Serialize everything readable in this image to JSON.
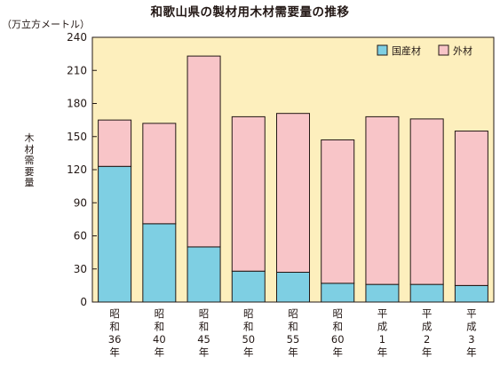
{
  "chart_data": {
    "type": "bar",
    "stacked": true,
    "title": "和歌山県の製材用木材需要量の推移",
    "unit_label": "（万立方メートル）",
    "ylabel": "木材需要量",
    "ylim": [
      0,
      240
    ],
    "yticks": [
      0,
      30,
      60,
      90,
      120,
      150,
      180,
      210,
      240
    ],
    "categories": [
      "昭和36年",
      "昭和40年",
      "昭和45年",
      "昭和50年",
      "昭和55年",
      "昭和60年",
      "平成1年",
      "平成2年",
      "平成3年"
    ],
    "category_lines": [
      [
        "昭",
        "和",
        "36",
        "年"
      ],
      [
        "昭",
        "和",
        "40",
        "年"
      ],
      [
        "昭",
        "和",
        "45",
        "年"
      ],
      [
        "昭",
        "和",
        "50",
        "年"
      ],
      [
        "昭",
        "和",
        "55",
        "年"
      ],
      [
        "昭",
        "和",
        "60",
        "年"
      ],
      [
        "平",
        "成",
        "1",
        "年"
      ],
      [
        "平",
        "成",
        "2",
        "年"
      ],
      [
        "平",
        "成",
        "3",
        "年"
      ]
    ],
    "series": [
      {
        "name": "国産材",
        "color": "#7ecfe3",
        "values": [
          123,
          71,
          50,
          28,
          27,
          17,
          16,
          16,
          15
        ]
      },
      {
        "name": "外材",
        "color": "#f8c5c8",
        "values": [
          42,
          91,
          173,
          140,
          144,
          130,
          152,
          150,
          140
        ]
      }
    ],
    "legend_position": "top-right",
    "plot_background": "#fdefbd",
    "grid": false
  }
}
